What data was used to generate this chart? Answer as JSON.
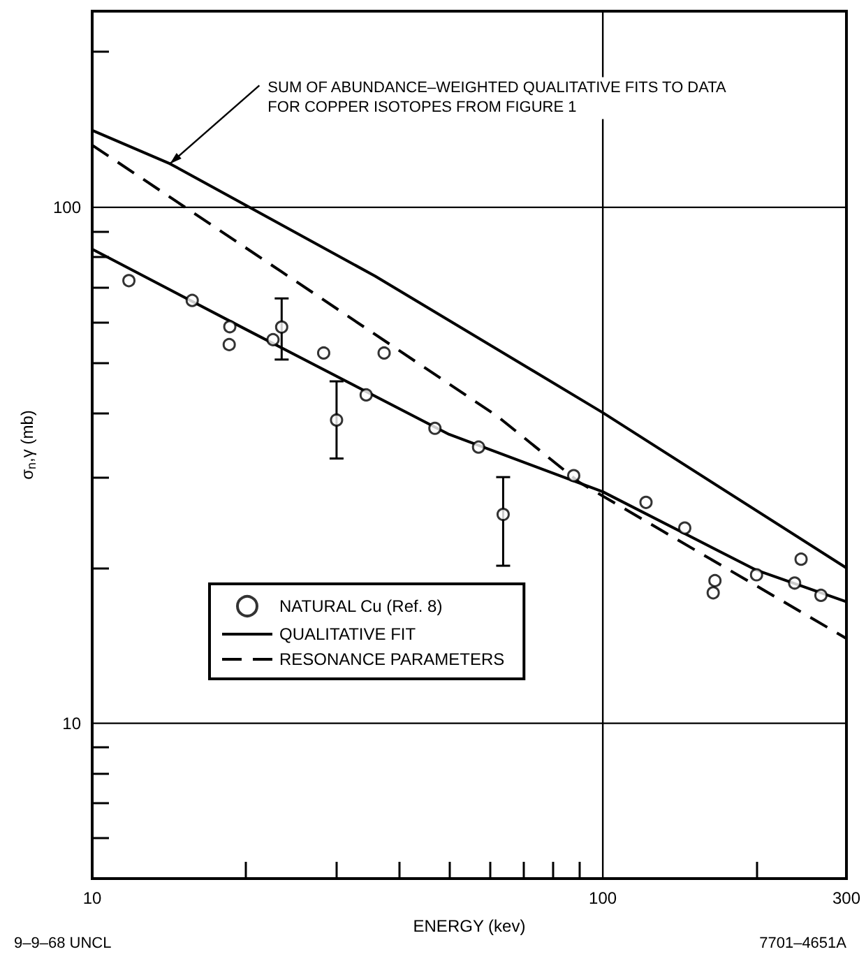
{
  "chart_data": {
    "type": "line",
    "xlabel": "ENERGY (kev)",
    "ylabel": "σ$_{n}$,γ (mb)",
    "log": "xy",
    "xlim": [
      10,
      300
    ],
    "ylim": [
      5,
      240
    ],
    "xticks": [
      10,
      {
        "value": 20,
        "label": null
      },
      {
        "value": 30,
        "label": null
      },
      {
        "value": 40,
        "label": null
      },
      {
        "value": 50,
        "label": null
      },
      {
        "value": 60,
        "label": null
      },
      {
        "value": 70,
        "label": null
      },
      {
        "value": 80,
        "label": null
      },
      {
        "value": 90,
        "label": null
      },
      100,
      {
        "value": 200,
        "label": null
      },
      300
    ],
    "yticks": [
      {
        "value": 6,
        "label": null
      },
      {
        "value": 7,
        "label": null
      },
      {
        "value": 8,
        "label": null
      },
      {
        "value": 9,
        "label": null
      },
      10,
      {
        "value": 20,
        "label": null
      },
      {
        "value": 30,
        "label": null
      },
      {
        "value": 40,
        "label": null
      },
      {
        "value": 50,
        "label": null
      },
      {
        "value": 60,
        "label": null
      },
      {
        "value": 70,
        "label": null
      },
      {
        "value": 80,
        "label": null
      },
      {
        "value": 90,
        "label": null
      },
      100,
      {
        "value": 200,
        "label": null
      }
    ],
    "grid": true,
    "legend": "bottom left",
    "series": [
      {
        "name": "NATURAL Cu (Ref. 8)",
        "type": "scatter",
        "marker": "circle",
        "color": "#000000",
        "x": [
          11.8,
          15.7,
          18.6,
          18.55,
          22.6,
          23.5,
          28.4,
          37.3,
          30.1,
          34.4,
          46.9,
          57.1,
          87.7,
          63.8,
          121.5,
          144.7,
          165.8,
          164.5,
          200,
          244.5,
          237.5,
          267.4
        ],
        "values": [
          72.1,
          66.0,
          58.7,
          54.2,
          55.4,
          58.6,
          52.2,
          52.2,
          38.7,
          43.3,
          37.3,
          34.3,
          30.2,
          25.4,
          26.8,
          23.9,
          18.9,
          17.9,
          19.4,
          20.8,
          18.7,
          17.7
        ],
        "errors": [
          null,
          null,
          null,
          null,
          null,
          [
            50.7,
            66.6
          ],
          null,
          null,
          [
            32.6,
            46.0
          ],
          null,
          null,
          null,
          null,
          [
            20.2,
            30.0
          ],
          null,
          null,
          null,
          null,
          null,
          null,
          null,
          null
        ]
      },
      {
        "name": "QUALITATIVE FIT",
        "line_style": "solid",
        "color": "#000000",
        "x": [
          10,
          20,
          50,
          100,
          200,
          300
        ],
        "values": [
          83,
          58,
          36.3,
          28.1,
          19.8,
          17.2
        ]
      },
      {
        "name": "RESONANCE PARAMETERS",
        "line_style": "dashed",
        "color": "#000000",
        "x": [
          10,
          23.5,
          62.3,
          90,
          300
        ],
        "values": [
          132,
          75,
          39.3,
          29.3,
          14.6
        ]
      },
      {
        "line_style": "solid",
        "color": "#000000",
        "x": [
          10,
          14.2,
          35.8,
          100,
          300
        ],
        "values": [
          141,
          121.5,
          73.6,
          40,
          20
        ]
      }
    ],
    "annotations": [
      {
        "text": "SUM OF ABUNDANCE–WEIGHTED QUALITATIVE FITS TO DATA\nFOR COPPER ISOTOPES FROM FIGURE 1",
        "x": 14.2,
        "y": 121.5
      },
      "9–9–68 UNCL",
      "7701–4651A"
    ]
  }
}
